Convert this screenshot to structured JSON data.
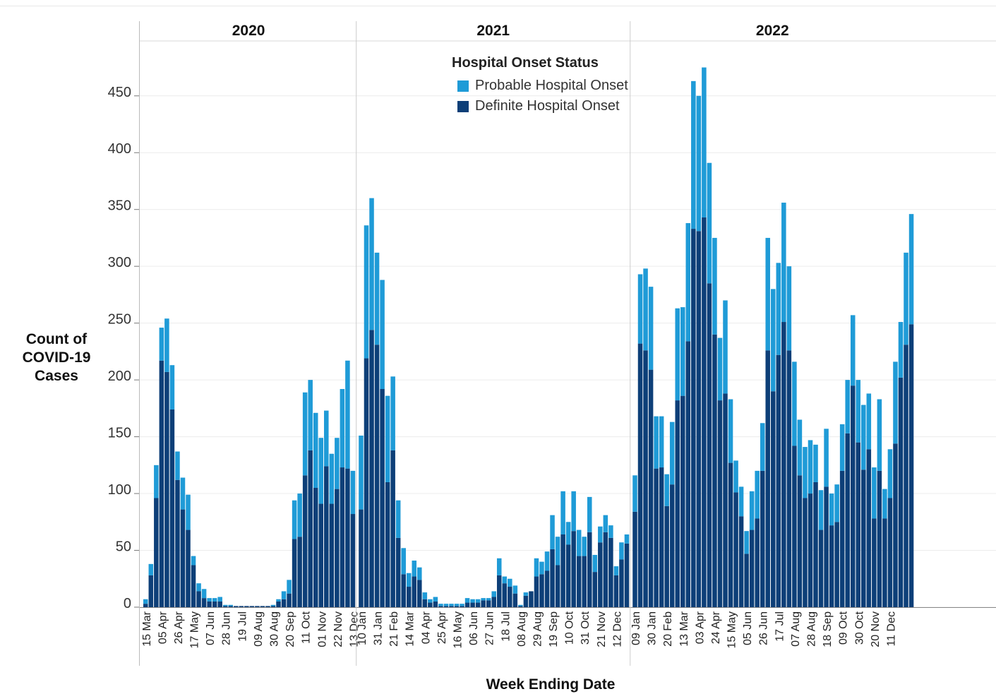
{
  "chart_data": {
    "type": "bar",
    "stacked": true,
    "title": "",
    "ylabel_lines": [
      "Count of",
      "COVID-19",
      "Cases"
    ],
    "xlabel": "Week Ending Date",
    "ylim": [
      0,
      500
    ],
    "y_ticks": [
      0,
      50,
      100,
      150,
      200,
      250,
      300,
      350,
      400,
      450
    ],
    "grid": true,
    "legend": {
      "title": "Hospital Onset Status",
      "placement": "top-center",
      "items": [
        {
          "name": "Probable Hospital Onset",
          "color": "#1f9bd7"
        },
        {
          "name": "Definite Hospital Onset",
          "color": "#0d3f78"
        }
      ]
    },
    "series_colors": {
      "definite": "#0d3f78",
      "probable": "#1f9bd7"
    },
    "panels": [
      {
        "year": "2020",
        "tick_labels": [
          "15 Mar",
          "05 Apr",
          "26 Apr",
          "17 May",
          "07 Jun",
          "28 Jun",
          "19 Jul",
          "09 Aug",
          "30 Aug",
          "20 Sep",
          "11 Oct",
          "01 Nov",
          "22 Nov",
          "13 Dec"
        ],
        "definite": [
          3,
          28,
          96,
          217,
          207,
          174,
          112,
          86,
          68,
          37,
          14,
          8,
          5,
          5,
          5,
          1,
          1,
          1,
          1,
          1,
          1,
          1,
          1,
          1,
          1,
          5,
          7,
          12,
          60,
          62,
          116,
          138,
          105,
          91,
          124,
          91,
          104,
          123,
          122,
          82
        ],
        "probable": [
          4,
          10,
          29,
          29,
          47,
          39,
          25,
          28,
          31,
          8,
          7,
          8,
          3,
          3,
          4,
          1,
          1,
          0,
          0,
          0,
          0,
          0,
          0,
          0,
          1,
          2,
          7,
          12,
          34,
          38,
          73,
          62,
          66,
          58,
          49,
          44,
          45,
          69,
          95,
          38
        ]
      },
      {
        "year": "2021",
        "tick_labels": [
          "10 Jan",
          "31 Jan",
          "21 Feb",
          "14 Mar",
          "04 Apr",
          "25 Apr",
          "16 May",
          "06 Jun",
          "27 Jun",
          "18 Jul",
          "08 Aug",
          "29 Aug",
          "19 Sep",
          "10 Oct",
          "31 Oct",
          "21 Nov",
          "12 Dec"
        ],
        "definite": [
          86,
          219,
          244,
          231,
          192,
          110,
          138,
          61,
          29,
          18,
          27,
          24,
          7,
          4,
          5,
          1,
          1,
          1,
          1,
          1,
          4,
          4,
          4,
          6,
          6,
          9,
          28,
          21,
          18,
          12,
          1,
          10,
          14,
          27,
          29,
          32,
          51,
          37,
          64,
          55,
          67,
          45,
          45,
          66,
          31,
          57,
          66,
          61,
          28,
          42,
          56
        ],
        "probable": [
          65,
          117,
          116,
          81,
          96,
          76,
          65,
          33,
          23,
          12,
          14,
          11,
          6,
          3,
          4,
          2,
          2,
          2,
          2,
          2,
          4,
          3,
          3,
          2,
          2,
          5,
          15,
          6,
          7,
          7,
          1,
          3,
          0,
          16,
          11,
          17,
          30,
          25,
          38,
          20,
          35,
          23,
          17,
          31,
          15,
          14,
          15,
          11,
          8,
          15,
          8
        ]
      },
      {
        "year": "2022",
        "tick_labels": [
          "09 Jan",
          "30 Jan",
          "20 Feb",
          "13 Mar",
          "03 Apr",
          "24 Apr",
          "15 May",
          "05 Jun",
          "26 Jun",
          "17 Jul",
          "07 Aug",
          "28 Aug",
          "18 Sep",
          "09 Oct",
          "30 Oct",
          "20 Nov",
          "11 Dec"
        ],
        "definite": [
          84,
          232,
          226,
          209,
          122,
          123,
          89,
          108,
          182,
          186,
          234,
          333,
          331,
          343,
          285,
          240,
          182,
          188,
          127,
          101,
          80,
          47,
          68,
          78,
          120,
          226,
          190,
          222,
          251,
          226,
          142,
          116,
          96,
          100,
          110,
          68,
          106,
          72,
          75,
          120,
          153,
          195,
          145,
          121,
          139,
          78,
          120,
          78,
          96,
          144,
          202,
          231,
          249
        ],
        "probable": [
          32,
          61,
          72,
          73,
          46,
          45,
          28,
          55,
          81,
          78,
          104,
          130,
          119,
          132,
          106,
          85,
          55,
          82,
          56,
          28,
          26,
          20,
          34,
          42,
          42,
          99,
          90,
          81,
          105,
          74,
          74,
          49,
          45,
          47,
          33,
          35,
          51,
          28,
          33,
          41,
          47,
          62,
          55,
          57,
          49,
          45,
          63,
          26,
          43,
          72,
          49,
          81,
          97
        ]
      }
    ]
  }
}
